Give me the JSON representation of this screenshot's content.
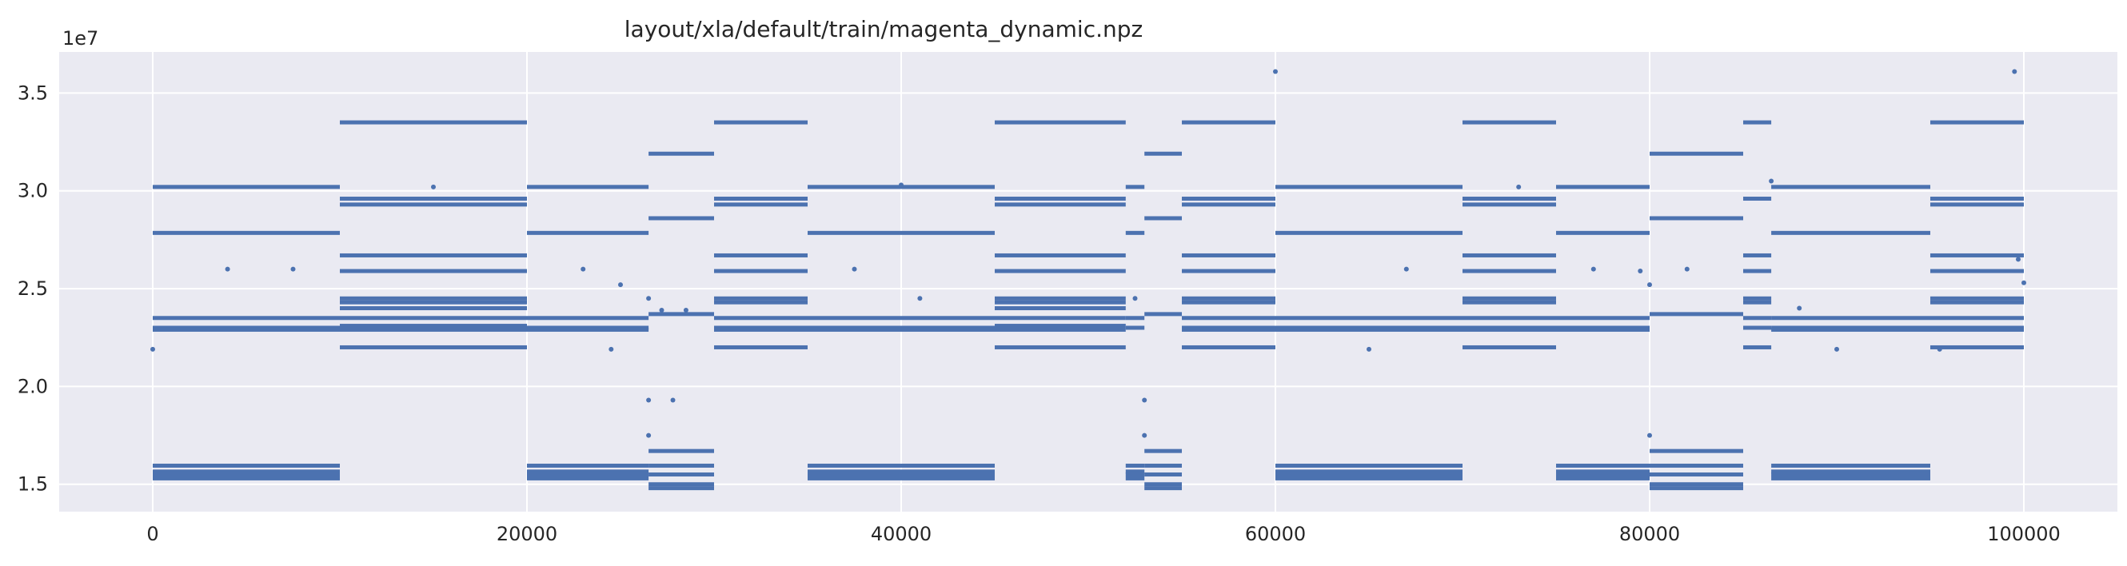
{
  "chart_data": {
    "type": "scatter",
    "title": "layout/xla/default/train/magenta_dynamic.npz",
    "xlabel": "",
    "ylabel": "",
    "xlim": [
      -5000,
      105000
    ],
    "ylim": [
      13600000,
      37100000
    ],
    "y_offset_text": "1e7",
    "x_ticks": [
      0,
      20000,
      40000,
      60000,
      80000,
      100000
    ],
    "x_tick_labels": [
      "0",
      "20000",
      "40000",
      "60000",
      "80000",
      "100000"
    ],
    "y_ticks": [
      15000000,
      20000000,
      25000000,
      30000000,
      35000000
    ],
    "y_tick_labels": [
      "1.5",
      "2.0",
      "2.5",
      "3.0",
      "3.5"
    ],
    "grid": true,
    "background": "#eaeaf2",
    "marker_color": "#4c72b0",
    "segments": [
      {
        "x_range": [
          0,
          10000
        ],
        "levels": [
          30200000,
          27850000,
          23500000,
          23000000,
          22900000,
          15950000,
          15650000,
          15500000,
          15300000
        ]
      },
      {
        "x_range": [
          10000,
          20000
        ],
        "levels": [
          33500000,
          29600000,
          29300000,
          26700000,
          25900000,
          24500000,
          24300000,
          24000000,
          23500000,
          23100000,
          22900000,
          22000000
        ]
      },
      {
        "x_range": [
          20000,
          26500
        ],
        "levels": [
          30200000,
          27850000,
          23500000,
          23000000,
          22900000,
          15950000,
          15650000,
          15500000,
          15300000
        ]
      },
      {
        "x_range": [
          26500,
          30000
        ],
        "levels": [
          31900000,
          28600000,
          23700000,
          16700000,
          15950000,
          15500000,
          15000000,
          14800000
        ]
      },
      {
        "x_range": [
          30000,
          35000
        ],
        "levels": [
          33500000,
          29600000,
          29300000,
          26700000,
          25900000,
          24500000,
          24300000,
          23500000,
          23000000,
          22900000,
          22000000
        ]
      },
      {
        "x_range": [
          35000,
          45000
        ],
        "levels": [
          30200000,
          27850000,
          23500000,
          23000000,
          22900000,
          15950000,
          15650000,
          15500000,
          15300000
        ]
      },
      {
        "x_range": [
          45000,
          52000
        ],
        "levels": [
          33500000,
          29600000,
          29300000,
          26700000,
          25900000,
          24500000,
          24300000,
          24000000,
          23500000,
          23100000,
          22900000,
          22000000
        ]
      },
      {
        "x_range": [
          52000,
          53000
        ],
        "levels": [
          30200000,
          27850000,
          23500000,
          23000000,
          15950000,
          15650000,
          15500000,
          15300000
        ]
      },
      {
        "x_range": [
          53000,
          55000
        ],
        "levels": [
          31900000,
          28600000,
          23700000,
          16700000,
          15950000,
          15500000,
          15000000,
          14800000
        ]
      },
      {
        "x_range": [
          55000,
          60000
        ],
        "levels": [
          33500000,
          29600000,
          29300000,
          26700000,
          25900000,
          24500000,
          24300000,
          23500000,
          23000000,
          22900000,
          22000000
        ]
      },
      {
        "x_range": [
          60000,
          70000
        ],
        "levels": [
          30200000,
          27850000,
          23500000,
          23000000,
          22900000,
          15950000,
          15650000,
          15500000,
          15300000
        ]
      },
      {
        "x_range": [
          70000,
          75000
        ],
        "levels": [
          33500000,
          29600000,
          29300000,
          26700000,
          25900000,
          24500000,
          24300000,
          23500000,
          23000000,
          22900000,
          22000000
        ]
      },
      {
        "x_range": [
          75000,
          80000
        ],
        "levels": [
          30200000,
          27850000,
          23500000,
          23000000,
          22900000,
          15950000,
          15650000,
          15500000,
          15300000
        ]
      },
      {
        "x_range": [
          80000,
          85000
        ],
        "levels": [
          31900000,
          28600000,
          23700000,
          16700000,
          15950000,
          15500000,
          15000000,
          14800000
        ]
      },
      {
        "x_range": [
          85000,
          86500
        ],
        "levels": [
          33500000,
          29600000,
          26700000,
          25900000,
          24500000,
          24300000,
          23500000,
          23000000,
          22000000
        ]
      },
      {
        "x_range": [
          86500,
          95000
        ],
        "levels": [
          30200000,
          27850000,
          23500000,
          23000000,
          22900000,
          15950000,
          15650000,
          15500000,
          15300000
        ]
      },
      {
        "x_range": [
          95000,
          100000
        ],
        "levels": [
          33500000,
          29600000,
          29300000,
          26700000,
          25900000,
          24500000,
          24300000,
          23500000,
          23000000,
          22900000,
          22000000
        ]
      }
    ],
    "outliers": [
      {
        "x": 0,
        "y": 21900000
      },
      {
        "x": 4000,
        "y": 26000000
      },
      {
        "x": 7500,
        "y": 26000000
      },
      {
        "x": 15000,
        "y": 30200000
      },
      {
        "x": 23000,
        "y": 26000000
      },
      {
        "x": 24500,
        "y": 21900000
      },
      {
        "x": 25000,
        "y": 25200000
      },
      {
        "x": 26500,
        "y": 19300000
      },
      {
        "x": 26500,
        "y": 17500000
      },
      {
        "x": 26500,
        "y": 24500000
      },
      {
        "x": 27800,
        "y": 19300000
      },
      {
        "x": 27200,
        "y": 23900000
      },
      {
        "x": 28500,
        "y": 23900000
      },
      {
        "x": 37500,
        "y": 26000000
      },
      {
        "x": 40000,
        "y": 30300000
      },
      {
        "x": 41000,
        "y": 24500000
      },
      {
        "x": 52500,
        "y": 24500000
      },
      {
        "x": 53000,
        "y": 19300000
      },
      {
        "x": 53000,
        "y": 17500000
      },
      {
        "x": 60000,
        "y": 36100000
      },
      {
        "x": 65000,
        "y": 21900000
      },
      {
        "x": 67000,
        "y": 26000000
      },
      {
        "x": 73000,
        "y": 30200000
      },
      {
        "x": 77000,
        "y": 26000000
      },
      {
        "x": 79500,
        "y": 25900000
      },
      {
        "x": 80000,
        "y": 17500000
      },
      {
        "x": 80000,
        "y": 25200000
      },
      {
        "x": 82000,
        "y": 26000000
      },
      {
        "x": 86500,
        "y": 30500000
      },
      {
        "x": 88000,
        "y": 24000000
      },
      {
        "x": 90000,
        "y": 21900000
      },
      {
        "x": 95500,
        "y": 21900000
      },
      {
        "x": 99500,
        "y": 36100000
      },
      {
        "x": 99700,
        "y": 26500000
      },
      {
        "x": 100000,
        "y": 25300000
      }
    ]
  }
}
